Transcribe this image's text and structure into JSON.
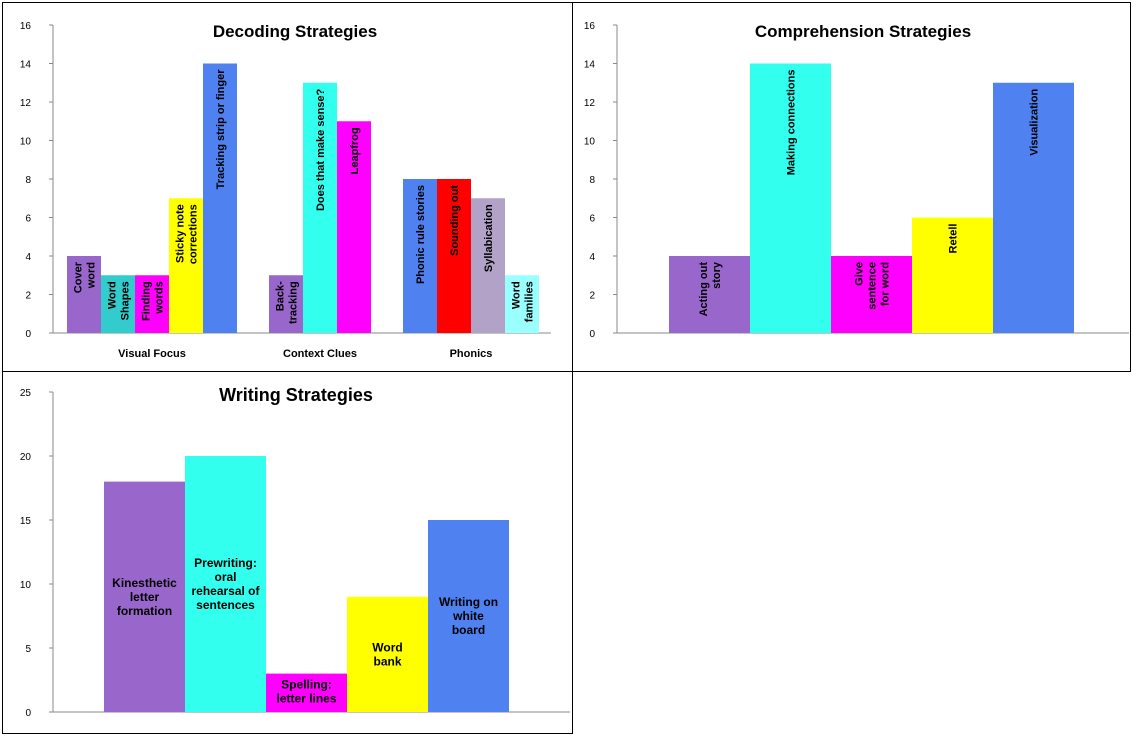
{
  "chart_data": [
    {
      "type": "bar",
      "title": "Decoding Strategies",
      "ylim": [
        0,
        16
      ],
      "yticks": [
        0,
        2,
        4,
        6,
        8,
        10,
        12,
        14,
        16
      ],
      "groups": [
        {
          "label": "Visual Focus",
          "bars": [
            {
              "label": "Cover word",
              "lines": [
                "Cover",
                "word"
              ],
              "value": 4,
              "color": "#9966CC"
            },
            {
              "label": "Word Shapes",
              "lines": [
                "Word",
                "Shapes"
              ],
              "value": 3,
              "color": "#33CCCC"
            },
            {
              "label": "Finding words",
              "lines": [
                "Finding",
                "words"
              ],
              "value": 3,
              "color": "#FF00FF"
            },
            {
              "label": "Sticky note corrections",
              "lines": [
                "Sticky note",
                "corrections"
              ],
              "value": 7,
              "color": "#FFFF00"
            },
            {
              "label": "Tracking strip or finger",
              "lines": [
                "Tracking strip or finger"
              ],
              "value": 14,
              "color": "#4F81F0"
            }
          ]
        },
        {
          "label": "Context Clues",
          "bars": [
            {
              "label": "Back-tracking",
              "lines": [
                "Back-",
                "tracking"
              ],
              "value": 3,
              "color": "#9966CC"
            },
            {
              "label": "Does that make sense?",
              "lines": [
                "Does that make sense?"
              ],
              "value": 13,
              "color": "#33FFEE"
            },
            {
              "label": "Leapfrog",
              "lines": [
                "Leapfrog"
              ],
              "value": 11,
              "color": "#FF00FF"
            }
          ]
        },
        {
          "label": "Phonics",
          "bars": [
            {
              "label": "Phonic rule stories",
              "lines": [
                "Phonic rule stories"
              ],
              "value": 8,
              "color": "#4F81F0"
            },
            {
              "label": "Sounding out",
              "lines": [
                "Sounding out"
              ],
              "value": 8,
              "color": "#FF0000"
            },
            {
              "label": "Syllabication",
              "lines": [
                "Syllabication"
              ],
              "value": 7,
              "color": "#B3A2C7"
            },
            {
              "label": "Word families",
              "lines": [
                "Word",
                "families"
              ],
              "value": 3,
              "color": "#99FFFF"
            }
          ]
        }
      ]
    },
    {
      "type": "bar",
      "title": "Comprehension Strategies",
      "ylim": [
        0,
        16
      ],
      "yticks": [
        0,
        2,
        4,
        6,
        8,
        10,
        12,
        14,
        16
      ],
      "bars": [
        {
          "label": "Acting out story",
          "lines": [
            "Acting out",
            "story"
          ],
          "value": 4,
          "color": "#9966CC"
        },
        {
          "label": "Making connections",
          "lines": [
            "Making connections"
          ],
          "value": 14,
          "color": "#33FFEE"
        },
        {
          "label": "Give sentence for word",
          "lines": [
            "Give",
            "sentence",
            "for word"
          ],
          "value": 4,
          "color": "#FF00FF"
        },
        {
          "label": "Retell",
          "lines": [
            "Retell"
          ],
          "value": 6,
          "color": "#FFFF00"
        },
        {
          "label": "Visualization",
          "lines": [
            "Visualization"
          ],
          "value": 13,
          "color": "#4F81F0"
        }
      ]
    },
    {
      "type": "bar",
      "title": "Writing Strategies",
      "ylim": [
        0,
        25
      ],
      "yticks": [
        0,
        5,
        10,
        15,
        20,
        25
      ],
      "bars": [
        {
          "label": "Kinesthetic letter formation",
          "lines": [
            "Kinesthetic",
            "letter",
            "formation"
          ],
          "value": 18,
          "color": "#9966CC"
        },
        {
          "label": "Prewriting: oral rehearsal of sentences",
          "lines": [
            "Prewriting:",
            "oral",
            "rehearsal of",
            "sentences"
          ],
          "value": 20,
          "color": "#33FFEE"
        },
        {
          "label": "Spelling: letter lines",
          "lines": [
            "Spelling:",
            "letter lines"
          ],
          "value": 3,
          "color": "#FF00FF"
        },
        {
          "label": "Word bank",
          "lines": [
            "Word",
            "bank"
          ],
          "value": 9,
          "color": "#FFFF00"
        },
        {
          "label": "Writing on white board",
          "lines": [
            "Writing on",
            "white",
            "board"
          ],
          "value": 15,
          "color": "#4F81F0"
        }
      ]
    }
  ]
}
